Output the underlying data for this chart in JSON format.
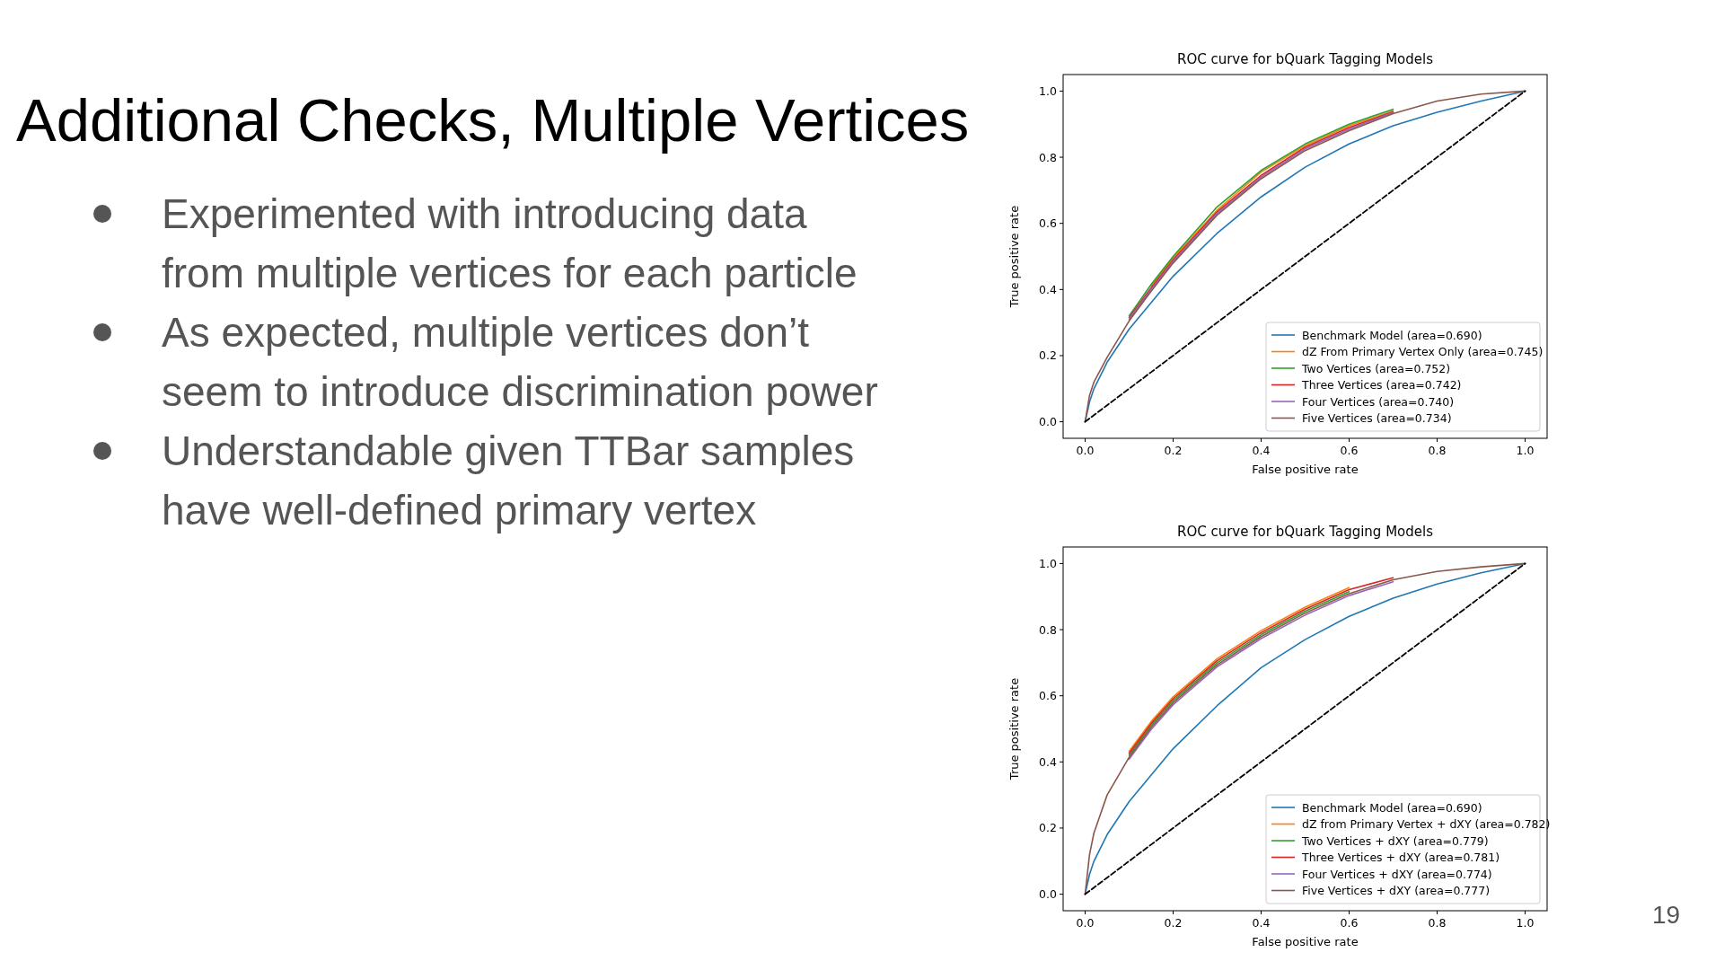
{
  "chart_data": [
    {
      "type": "other",
      "title": "Additional Checks, Multiple Vertices",
      "annotations": [
        "Experimented with introducing data from multiple vertices for each particle",
        "As expected, multiple vertices don’t seem to introduce discrimination power",
        "Understandable given TTBar samples have well-defined primary vertex",
        "19"
      ]
    },
    {
      "type": "line",
      "title": "ROC curve for bQuark Tagging Models",
      "xlabel": "False positive rate",
      "ylabel": "True positive rate",
      "xlim": [
        -0.05,
        1.05
      ],
      "ylim": [
        -0.05,
        1.05
      ],
      "xticks": [
        {
          "value": 0,
          "label": "0.0"
        },
        {
          "value": 0.2,
          "label": "0.2"
        },
        {
          "value": 0.4,
          "label": "0.4"
        },
        {
          "value": 0.6,
          "label": "0.6"
        },
        {
          "value": 0.8,
          "label": "0.8"
        },
        {
          "value": 1,
          "label": "1.0"
        }
      ],
      "yticks": [
        {
          "value": 0,
          "label": "0.0"
        },
        {
          "value": 0.2,
          "label": "0.2"
        },
        {
          "value": 0.4,
          "label": "0.4"
        },
        {
          "value": 0.6,
          "label": "0.6"
        },
        {
          "value": 0.8,
          "label": "0.8"
        },
        {
          "value": 1,
          "label": "1.0"
        }
      ],
      "legend": "bottom right",
      "x": [
        0,
        0.01,
        0.02,
        0.05,
        0.1,
        0.15,
        0.2,
        0.3,
        0.4,
        0.5,
        0.6,
        0.7,
        0.8,
        0.9,
        1
      ],
      "series": [
        {
          "name": "Benchmark Model (area=0.690)",
          "color": "#1f77b4",
          "values": [
            0,
            0.06,
            0.1,
            0.18,
            0.28,
            0.36,
            0.44,
            0.57,
            0.68,
            0.77,
            0.84,
            0.895,
            0.936,
            0.97,
            1
          ]
        },
        {
          "name": "dZ From Primary Vertex Only (area=0.745)",
          "color": "#ff7f0e",
          "values": [
            null,
            null,
            null,
            null,
            null,
            0.41,
            0.495,
            0.64,
            0.755,
            0.835,
            0.895,
            0.94,
            null,
            null,
            null
          ]
        },
        {
          "name": "Two Vertices (area=0.752)",
          "color": "#2ca02c",
          "values": [
            null,
            null,
            null,
            null,
            0.32,
            0.415,
            0.5,
            0.65,
            0.76,
            0.84,
            0.9,
            0.945,
            null,
            null,
            null
          ]
        },
        {
          "name": "Three Vertices (area=0.742)",
          "color": "#d62728",
          "values": [
            null,
            null,
            null,
            null,
            0.315,
            0.405,
            0.49,
            0.635,
            0.745,
            0.83,
            0.89,
            0.937,
            null,
            null,
            null
          ]
        },
        {
          "name": "Four Vertices (area=0.740)",
          "color": "#9467bd",
          "values": [
            null,
            null,
            null,
            null,
            0.31,
            0.4,
            0.485,
            0.63,
            0.74,
            0.825,
            0.885,
            0.935,
            null,
            null,
            null
          ]
        },
        {
          "name": "Five Vertices (area=0.734)",
          "color": "#8c564b",
          "values": [
            0,
            0.08,
            0.12,
            0.195,
            0.305,
            0.395,
            0.48,
            0.625,
            0.735,
            0.82,
            0.88,
            0.932,
            0.97,
            0.991,
            1
          ]
        },
        {
          "color": "#000000",
          "line_style": "dashed",
          "values": [
            0,
            0.01,
            0.02,
            0.05,
            0.1,
            0.15,
            0.2,
            0.3,
            0.4,
            0.5,
            0.6,
            0.7,
            0.8,
            0.9,
            1
          ]
        }
      ]
    },
    {
      "type": "line",
      "title": "ROC curve for bQuark Tagging Models",
      "xlabel": "False positive rate",
      "ylabel": "True positive rate",
      "xlim": [
        -0.05,
        1.05
      ],
      "ylim": [
        -0.05,
        1.05
      ],
      "xticks": [
        {
          "value": 0,
          "label": "0.0"
        },
        {
          "value": 0.2,
          "label": "0.2"
        },
        {
          "value": 0.4,
          "label": "0.4"
        },
        {
          "value": 0.6,
          "label": "0.6"
        },
        {
          "value": 0.8,
          "label": "0.8"
        },
        {
          "value": 1,
          "label": "1.0"
        }
      ],
      "yticks": [
        {
          "value": 0,
          "label": "0.0"
        },
        {
          "value": 0.2,
          "label": "0.2"
        },
        {
          "value": 0.4,
          "label": "0.4"
        },
        {
          "value": 0.6,
          "label": "0.6"
        },
        {
          "value": 0.8,
          "label": "0.8"
        },
        {
          "value": 1,
          "label": "1.0"
        }
      ],
      "legend": "bottom right",
      "x": [
        0,
        0.01,
        0.02,
        0.05,
        0.1,
        0.15,
        0.2,
        0.3,
        0.4,
        0.5,
        0.6,
        0.7,
        0.8,
        0.9,
        1
      ],
      "series": [
        {
          "name": "Benchmark Model (area=0.690)",
          "color": "#1f77b4",
          "values": [
            0,
            0.06,
            0.1,
            0.18,
            0.28,
            0.36,
            0.44,
            0.57,
            0.685,
            0.77,
            0.84,
            0.895,
            0.938,
            0.972,
            1
          ]
        },
        {
          "name": "dZ from Primary Vertex + dXY (area=0.782)",
          "color": "#ff7f0e",
          "values": [
            null,
            null,
            null,
            null,
            0.432,
            0.522,
            0.597,
            0.712,
            0.797,
            0.868,
            0.927,
            null,
            null,
            null,
            null
          ]
        },
        {
          "name": "Two Vertices + dXY (area=0.779)",
          "color": "#2ca02c",
          "values": [
            null,
            null,
            null,
            null,
            0.42,
            0.51,
            0.585,
            0.7,
            0.785,
            0.856,
            0.915,
            null,
            null,
            null,
            null
          ]
        },
        {
          "name": "Three Vertices + dXY (area=0.781)",
          "color": "#d62728",
          "values": [
            null,
            null,
            null,
            null,
            0.426,
            0.516,
            0.591,
            0.706,
            0.791,
            0.862,
            0.921,
            0.957,
            null,
            null,
            null
          ]
        },
        {
          "name": "Four Vertices + dXY (area=0.774)",
          "color": "#9467bd",
          "values": [
            null,
            null,
            null,
            null,
            0.408,
            0.498,
            0.573,
            0.688,
            0.773,
            0.844,
            0.903,
            0.945,
            null,
            null,
            null
          ]
        },
        {
          "name": "Five Vertices + dXY (area=0.777)",
          "color": "#8c564b",
          "values": [
            0,
            0.12,
            0.185,
            0.3,
            0.414,
            0.504,
            0.579,
            0.694,
            0.779,
            0.85,
            0.909,
            0.951,
            0.976,
            0.99,
            1
          ]
        },
        {
          "color": "#000000",
          "line_style": "dashed",
          "values": [
            0,
            0.01,
            0.02,
            0.05,
            0.1,
            0.15,
            0.2,
            0.3,
            0.4,
            0.5,
            0.6,
            0.7,
            0.8,
            0.9,
            1
          ]
        }
      ]
    }
  ]
}
